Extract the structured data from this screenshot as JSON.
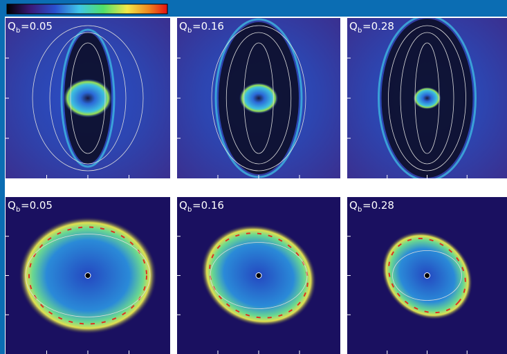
{
  "panels": [
    {
      "symbol": "Q",
      "subscript": "b",
      "value_text": "=0.05"
    },
    {
      "symbol": "Q",
      "subscript": "b",
      "value_text": "=0.16"
    },
    {
      "symbol": "Q",
      "subscript": "b",
      "value_text": "=0.28"
    },
    {
      "symbol": "Q",
      "subscript": "b",
      "value_text": "=0.05"
    },
    {
      "symbol": "Q",
      "subscript": "b",
      "value_text": "=0.16"
    },
    {
      "symbol": "Q",
      "subscript": "b",
      "value_text": "=0.28"
    }
  ]
}
